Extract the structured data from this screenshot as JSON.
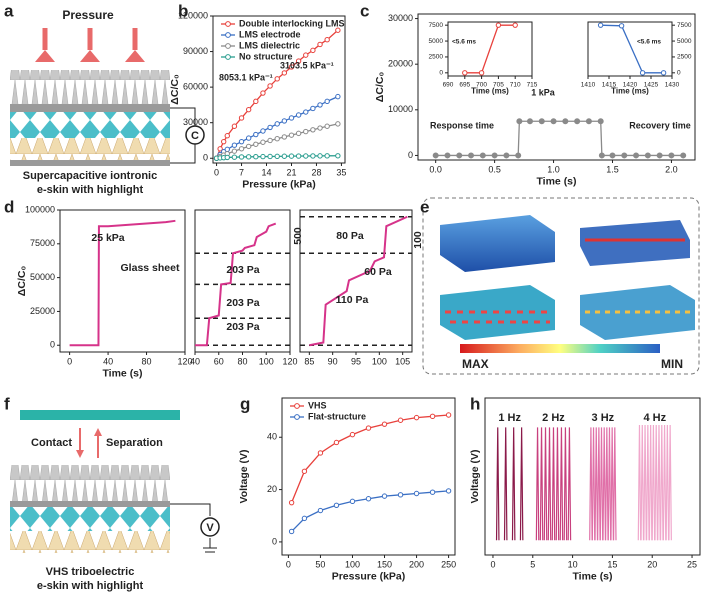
{
  "labels": [
    "a",
    "b",
    "c",
    "d",
    "e",
    "f",
    "g",
    "h"
  ],
  "panel_a": {
    "arrow_label": "Pressure",
    "caption": [
      "Supercapacitive iontronic",
      "e-skin with highlight"
    ],
    "symbol": "C"
  },
  "panel_e": {
    "colorbar": [
      "MAX",
      "MIN"
    ]
  },
  "panel_f": {
    "labels": [
      "Contact",
      "Separation"
    ],
    "caption": [
      "VHS triboelectric",
      "e-skin with highlight"
    ],
    "symbol": "V"
  },
  "chart_data": [
    {
      "type": "line",
      "xlabel": "Pressure (kPa)",
      "ylabel": "ΔC/C₀",
      "xlim": [
        -1,
        36
      ],
      "xticks": [
        0,
        7,
        14,
        21,
        28,
        35
      ],
      "ylim": [
        -4000,
        120000
      ],
      "yticks": [
        0,
        30000,
        60000,
        90000,
        120000
      ],
      "legend": "upper left",
      "x": [
        0,
        1,
        2,
        3,
        5,
        7,
        9,
        11,
        13,
        15,
        17,
        19,
        21,
        23,
        25,
        27,
        29,
        31,
        34
      ],
      "series": [
        {
          "name": "Double interlocking LMS",
          "color": "#e8413c",
          "values": [
            0,
            8000,
            14000,
            19000,
            27000,
            34000,
            41000,
            48000,
            55000,
            61000,
            67000,
            72000,
            77000,
            82000,
            87000,
            91000,
            96000,
            100000,
            108000
          ]
        },
        {
          "name": "LMS electrode",
          "color": "#3a6fc4",
          "values": [
            0,
            3100,
            5500,
            7500,
            11000,
            14000,
            17000,
            20000,
            23000,
            26000,
            29000,
            31500,
            34000,
            36500,
            39000,
            42000,
            45000,
            48000,
            52000
          ]
        },
        {
          "name": "LMS dielectric",
          "color": "#8a8a8a",
          "values": [
            0,
            1500,
            2700,
            3800,
            6000,
            8000,
            10000,
            11800,
            13500,
            15000,
            16500,
            18000,
            19500,
            21000,
            22500,
            24000,
            25500,
            27000,
            29000
          ]
        },
        {
          "name": "No structure",
          "color": "#2a9d8f",
          "values": [
            0,
            300,
            500,
            700,
            900,
            1100,
            1200,
            1300,
            1400,
            1500,
            1600,
            1700,
            1800,
            1850,
            1900,
            1950,
            2000,
            2050,
            2100
          ]
        }
      ],
      "annotations": [
        "8053.1 kPa⁻¹",
        "3103.5 kPa⁻¹"
      ]
    },
    {
      "type": "line",
      "xlabel": "Time (s)",
      "ylabel": "ΔC/C₀",
      "xlim": [
        -0.15,
        2.2
      ],
      "xticks": [
        {
          "value": 0,
          "label": "0.0"
        },
        {
          "value": 0.5,
          "label": "0.5"
        },
        {
          "value": 1,
          "label": "1.0"
        },
        {
          "value": 1.5,
          "label": "1.5"
        },
        {
          "value": 2,
          "label": "2.0"
        }
      ],
      "ylim": [
        -1000,
        31000
      ],
      "yticks": [
        0,
        10000,
        20000,
        30000
      ],
      "x": [
        0,
        0.1,
        0.2,
        0.3,
        0.4,
        0.5,
        0.6,
        0.7,
        0.71,
        0.8,
        0.9,
        1.0,
        1.1,
        1.2,
        1.3,
        1.4,
        1.41,
        1.5,
        1.6,
        1.7,
        1.8,
        1.9,
        2.0,
        2.1
      ],
      "series": [
        {
          "name": null,
          "color": "#8a8a8a",
          "values": [
            0,
            0,
            0,
            0,
            0,
            0,
            0,
            0,
            7500,
            7500,
            7500,
            7500,
            7500,
            7500,
            7500,
            7500,
            0,
            0,
            0,
            0,
            0,
            0,
            0,
            0
          ]
        }
      ],
      "annotations": [
        "1 kPa",
        "Response time",
        "Recovery time"
      ]
    },
    {
      "type": "line",
      "xlabel": "Time (ms)",
      "xlim": [
        690,
        715
      ],
      "xticks": [
        690,
        695,
        700,
        705,
        710,
        715
      ],
      "ylim": [
        -500,
        8000
      ],
      "yticks": [
        0,
        2500,
        5000,
        7500
      ],
      "x": [
        695,
        700,
        705,
        710
      ],
      "series": [
        {
          "name": null,
          "color": "#e8413c",
          "values": [
            0,
            0,
            7500,
            7500
          ]
        }
      ],
      "annotations": [
        "<5.6 ms"
      ]
    },
    {
      "type": "line",
      "xlabel": "Time (ms)",
      "xlim": [
        1410,
        1430
      ],
      "xticks": [
        1410,
        1415,
        1420,
        1425,
        1430
      ],
      "ylim": [
        -500,
        8000
      ],
      "yticks": [
        0,
        2500,
        5000,
        7500
      ],
      "ytick_side": "right",
      "x": [
        1413,
        1418,
        1423,
        1428
      ],
      "series": [
        {
          "name": null,
          "color": "#3a6fc4",
          "values": [
            7500,
            7400,
            0,
            0
          ]
        }
      ],
      "annotations": [
        "<5.6 ms"
      ]
    },
    {
      "type": "line",
      "xlabel": "Time (s)",
      "ylabel": "ΔC/C₀",
      "xlim": [
        -10,
        120
      ],
      "xticks": [
        0,
        40,
        80,
        120
      ],
      "ylim": [
        -5000,
        100000
      ],
      "yticks": [
        0,
        25000,
        50000,
        75000,
        100000
      ],
      "x": [
        0,
        30,
        30.5,
        40,
        60,
        80,
        100,
        110
      ],
      "series": [
        {
          "name": null,
          "color": "#d6338a",
          "values": [
            0,
            0,
            88000,
            88000,
            89000,
            90000,
            91000,
            92000
          ]
        }
      ],
      "annotations": [
        "25 kPa",
        "Glass sheet"
      ]
    },
    {
      "type": "line",
      "xlim": [
        40,
        120
      ],
      "xticks": [
        40,
        60,
        80,
        100,
        120
      ],
      "ylim": [
        -5000,
        100000
      ],
      "reference_lines": [
        0,
        20000,
        45000,
        68000
      ],
      "x": [
        40,
        50,
        52,
        60,
        62,
        70,
        72,
        80,
        82,
        90,
        92,
        100,
        102,
        108
      ],
      "series": [
        {
          "name": null,
          "color": "#d6338a",
          "values": [
            0,
            0,
            20000,
            22000,
            45000,
            46000,
            68000,
            70000,
            72000,
            74000,
            80000,
            84000,
            88000,
            90000
          ]
        }
      ],
      "annotations": [
        "203 Pa",
        "203 Pa",
        "203 Pa",
        "500"
      ]
    },
    {
      "type": "line",
      "xlim": [
        83,
        107
      ],
      "xticks": [
        85,
        90,
        95,
        100,
        105
      ],
      "ylim": [
        -5000,
        100000
      ],
      "reference_lines": [
        0,
        68000,
        95000
      ],
      "x": [
        85,
        88,
        88.5,
        93,
        93.5,
        98,
        99,
        101,
        101.5,
        106
      ],
      "series": [
        {
          "name": null,
          "color": "#d6338a",
          "values": [
            0,
            2000,
            30000,
            40000,
            48000,
            55000,
            62000,
            65000,
            88000,
            95000
          ]
        }
      ],
      "annotations": [
        "80 Pa",
        "60 Pa",
        "110 Pa",
        "100"
      ]
    },
    {
      "type": "line",
      "xlabel": "Pressure (kPa)",
      "ylabel": "Voltage (V)",
      "xlim": [
        -10,
        260
      ],
      "xticks": [
        0,
        50,
        100,
        150,
        200,
        250
      ],
      "ylim": [
        -5,
        55
      ],
      "yticks": [
        0,
        20,
        40
      ],
      "legend": "upper left",
      "x": [
        5,
        25,
        50,
        75,
        100,
        125,
        150,
        175,
        200,
        225,
        250
      ],
      "series": [
        {
          "name": "VHS",
          "color": "#e8413c",
          "values": [
            15,
            27,
            34,
            38,
            41,
            43.5,
            45,
            46.5,
            47.5,
            48,
            48.5
          ]
        },
        {
          "name": "Flat-structure",
          "color": "#3a6fc4",
          "values": [
            4,
            9,
            12,
            14,
            15.5,
            16.5,
            17.5,
            18,
            18.5,
            19,
            19.5
          ]
        }
      ]
    },
    {
      "type": "spike",
      "xlabel": "Time (s)",
      "ylabel": "Voltage (V)",
      "xlim": [
        -1,
        26
      ],
      "xticks": [
        0,
        5,
        10,
        15,
        20,
        25
      ],
      "ylim": [
        -6,
        58
      ],
      "series": [
        {
          "name": "1 Hz",
          "color": "#8b1a4a",
          "x": [
            0.6,
            1.6,
            2.6,
            3.6
          ],
          "values": [
            46,
            46,
            46,
            46
          ]
        },
        {
          "name": "2 Hz",
          "color": "#c8407e",
          "x": [
            5.6,
            6.1,
            6.6,
            7.1,
            7.6,
            8.1,
            8.6,
            9.1,
            9.6
          ],
          "values": [
            46,
            46,
            46,
            46,
            46,
            46,
            46,
            46,
            46
          ]
        },
        {
          "name": "3 Hz",
          "color": "#e070a8",
          "x": [
            12.3,
            12.63,
            12.97,
            13.3,
            13.63,
            13.97,
            14.3,
            14.63,
            14.97,
            15.3
          ],
          "values": [
            46,
            46,
            46,
            46,
            46,
            46,
            46,
            46,
            46,
            46
          ]
        },
        {
          "name": "4 Hz",
          "color": "#f0a8cc",
          "x": [
            18.4,
            18.75,
            19.1,
            19.45,
            19.8,
            20.15,
            20.5,
            20.85,
            21.2,
            21.55,
            21.9,
            22.25
          ],
          "values": [
            47,
            47,
            47,
            47,
            47,
            47,
            47,
            47,
            47,
            47,
            47,
            47
          ]
        }
      ]
    }
  ]
}
